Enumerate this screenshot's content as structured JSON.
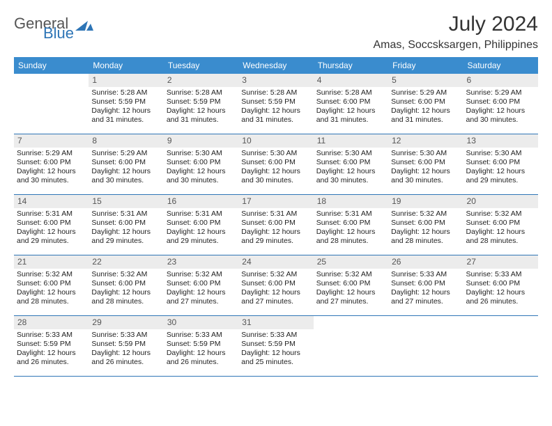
{
  "logo": {
    "text1": "General",
    "text2": "Blue",
    "color1": "#555555",
    "color2": "#2e75b6",
    "shape_color": "#2e75b6"
  },
  "title": "July 2024",
  "location": "Amas, Soccsksargen, Philippines",
  "colors": {
    "header_bg": "#3a8cce",
    "header_text": "#ffffff",
    "daynum_bg": "#ececec",
    "border": "#2e75b6",
    "body_text": "#222222"
  },
  "weekdays": [
    "Sunday",
    "Monday",
    "Tuesday",
    "Wednesday",
    "Thursday",
    "Friday",
    "Saturday"
  ],
  "first_weekday_index": 1,
  "days": [
    {
      "n": 1,
      "sunrise": "5:28 AM",
      "sunset": "5:59 PM",
      "daylight": "12 hours and 31 minutes."
    },
    {
      "n": 2,
      "sunrise": "5:28 AM",
      "sunset": "5:59 PM",
      "daylight": "12 hours and 31 minutes."
    },
    {
      "n": 3,
      "sunrise": "5:28 AM",
      "sunset": "5:59 PM",
      "daylight": "12 hours and 31 minutes."
    },
    {
      "n": 4,
      "sunrise": "5:28 AM",
      "sunset": "6:00 PM",
      "daylight": "12 hours and 31 minutes."
    },
    {
      "n": 5,
      "sunrise": "5:29 AM",
      "sunset": "6:00 PM",
      "daylight": "12 hours and 31 minutes."
    },
    {
      "n": 6,
      "sunrise": "5:29 AM",
      "sunset": "6:00 PM",
      "daylight": "12 hours and 30 minutes."
    },
    {
      "n": 7,
      "sunrise": "5:29 AM",
      "sunset": "6:00 PM",
      "daylight": "12 hours and 30 minutes."
    },
    {
      "n": 8,
      "sunrise": "5:29 AM",
      "sunset": "6:00 PM",
      "daylight": "12 hours and 30 minutes."
    },
    {
      "n": 9,
      "sunrise": "5:30 AM",
      "sunset": "6:00 PM",
      "daylight": "12 hours and 30 minutes."
    },
    {
      "n": 10,
      "sunrise": "5:30 AM",
      "sunset": "6:00 PM",
      "daylight": "12 hours and 30 minutes."
    },
    {
      "n": 11,
      "sunrise": "5:30 AM",
      "sunset": "6:00 PM",
      "daylight": "12 hours and 30 minutes."
    },
    {
      "n": 12,
      "sunrise": "5:30 AM",
      "sunset": "6:00 PM",
      "daylight": "12 hours and 30 minutes."
    },
    {
      "n": 13,
      "sunrise": "5:30 AM",
      "sunset": "6:00 PM",
      "daylight": "12 hours and 29 minutes."
    },
    {
      "n": 14,
      "sunrise": "5:31 AM",
      "sunset": "6:00 PM",
      "daylight": "12 hours and 29 minutes."
    },
    {
      "n": 15,
      "sunrise": "5:31 AM",
      "sunset": "6:00 PM",
      "daylight": "12 hours and 29 minutes."
    },
    {
      "n": 16,
      "sunrise": "5:31 AM",
      "sunset": "6:00 PM",
      "daylight": "12 hours and 29 minutes."
    },
    {
      "n": 17,
      "sunrise": "5:31 AM",
      "sunset": "6:00 PM",
      "daylight": "12 hours and 29 minutes."
    },
    {
      "n": 18,
      "sunrise": "5:31 AM",
      "sunset": "6:00 PM",
      "daylight": "12 hours and 28 minutes."
    },
    {
      "n": 19,
      "sunrise": "5:32 AM",
      "sunset": "6:00 PM",
      "daylight": "12 hours and 28 minutes."
    },
    {
      "n": 20,
      "sunrise": "5:32 AM",
      "sunset": "6:00 PM",
      "daylight": "12 hours and 28 minutes."
    },
    {
      "n": 21,
      "sunrise": "5:32 AM",
      "sunset": "6:00 PM",
      "daylight": "12 hours and 28 minutes."
    },
    {
      "n": 22,
      "sunrise": "5:32 AM",
      "sunset": "6:00 PM",
      "daylight": "12 hours and 28 minutes."
    },
    {
      "n": 23,
      "sunrise": "5:32 AM",
      "sunset": "6:00 PM",
      "daylight": "12 hours and 27 minutes."
    },
    {
      "n": 24,
      "sunrise": "5:32 AM",
      "sunset": "6:00 PM",
      "daylight": "12 hours and 27 minutes."
    },
    {
      "n": 25,
      "sunrise": "5:32 AM",
      "sunset": "6:00 PM",
      "daylight": "12 hours and 27 minutes."
    },
    {
      "n": 26,
      "sunrise": "5:33 AM",
      "sunset": "6:00 PM",
      "daylight": "12 hours and 27 minutes."
    },
    {
      "n": 27,
      "sunrise": "5:33 AM",
      "sunset": "6:00 PM",
      "daylight": "12 hours and 26 minutes."
    },
    {
      "n": 28,
      "sunrise": "5:33 AM",
      "sunset": "5:59 PM",
      "daylight": "12 hours and 26 minutes."
    },
    {
      "n": 29,
      "sunrise": "5:33 AM",
      "sunset": "5:59 PM",
      "daylight": "12 hours and 26 minutes."
    },
    {
      "n": 30,
      "sunrise": "5:33 AM",
      "sunset": "5:59 PM",
      "daylight": "12 hours and 26 minutes."
    },
    {
      "n": 31,
      "sunrise": "5:33 AM",
      "sunset": "5:59 PM",
      "daylight": "12 hours and 25 minutes."
    }
  ],
  "labels": {
    "sunrise": "Sunrise:",
    "sunset": "Sunset:",
    "daylight": "Daylight:"
  }
}
